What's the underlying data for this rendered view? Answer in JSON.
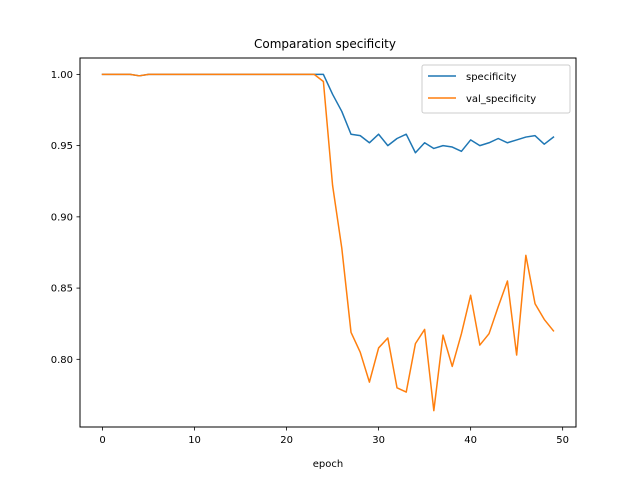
{
  "chart_data": {
    "type": "line",
    "title": "Comparation specificity",
    "xlabel": "epoch",
    "ylabel": "",
    "xlim": [
      -2.45,
      51.45
    ],
    "ylim": [
      0.7525,
      1.0115
    ],
    "xticks": [
      0,
      10,
      20,
      30,
      40,
      50
    ],
    "yticks": [
      0.8,
      0.85,
      0.9,
      0.95,
      1.0
    ],
    "ytick_labels": [
      "0.80",
      "0.85",
      "0.90",
      "0.95",
      "1.00"
    ],
    "grid": false,
    "legend_position": "top-right",
    "x": [
      0,
      1,
      2,
      3,
      4,
      5,
      6,
      7,
      8,
      9,
      10,
      11,
      12,
      13,
      14,
      15,
      16,
      17,
      18,
      19,
      20,
      21,
      22,
      23,
      24,
      25,
      26,
      27,
      28,
      29,
      30,
      31,
      32,
      33,
      34,
      35,
      36,
      37,
      38,
      39,
      40,
      41,
      42,
      43,
      44,
      45,
      46,
      47,
      48,
      49
    ],
    "series": [
      {
        "name": "specificity",
        "color": "#1f77b4",
        "values": [
          1.0,
          1.0,
          1.0,
          1.0,
          0.999,
          1.0,
          1.0,
          1.0,
          1.0,
          1.0,
          1.0,
          1.0,
          1.0,
          1.0,
          1.0,
          1.0,
          1.0,
          1.0,
          1.0,
          1.0,
          1.0,
          1.0,
          1.0,
          1.0,
          1.0,
          0.986,
          0.974,
          0.958,
          0.957,
          0.952,
          0.958,
          0.95,
          0.955,
          0.958,
          0.945,
          0.952,
          0.948,
          0.95,
          0.949,
          0.946,
          0.954,
          0.95,
          0.952,
          0.955,
          0.952,
          0.954,
          0.956,
          0.957,
          0.951,
          0.956
        ]
      },
      {
        "name": "val_specificity",
        "color": "#ff7f0e",
        "values": [
          1.0,
          1.0,
          1.0,
          1.0,
          0.999,
          1.0,
          1.0,
          1.0,
          1.0,
          1.0,
          1.0,
          1.0,
          1.0,
          1.0,
          1.0,
          1.0,
          1.0,
          1.0,
          1.0,
          1.0,
          1.0,
          1.0,
          1.0,
          1.0,
          0.995,
          0.922,
          0.878,
          0.819,
          0.805,
          0.784,
          0.808,
          0.815,
          0.78,
          0.777,
          0.811,
          0.821,
          0.764,
          0.817,
          0.795,
          0.818,
          0.845,
          0.81,
          0.818,
          0.837,
          0.855,
          0.803,
          0.873,
          0.839,
          0.828,
          0.82
        ]
      }
    ]
  }
}
